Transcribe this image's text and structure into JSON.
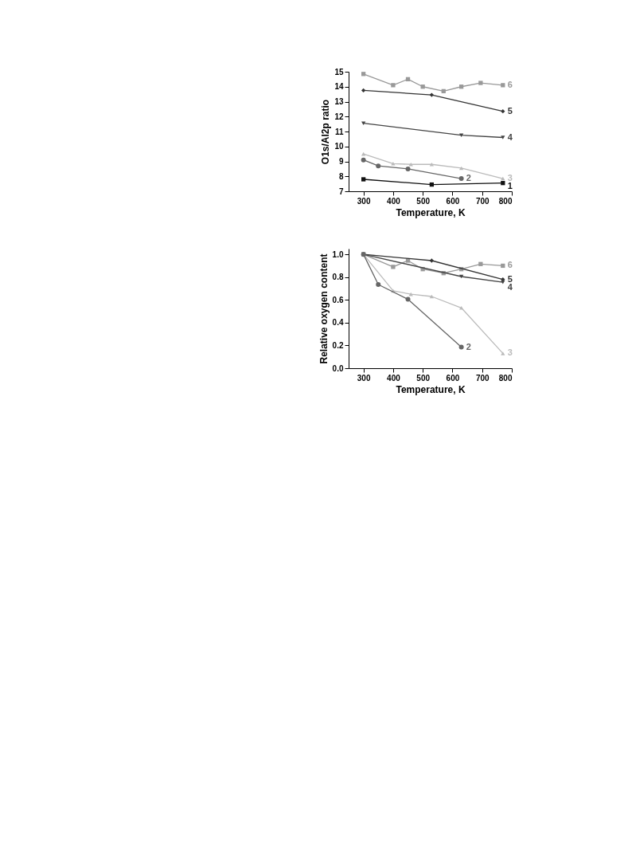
{
  "chart_data": [
    {
      "type": "line",
      "xlabel": "Temperature, K",
      "ylabel": "O1s/Al2p ratio",
      "xlim": [
        250,
        800
      ],
      "xticks": [
        300,
        400,
        500,
        600,
        700,
        800
      ],
      "ylim": [
        7,
        15
      ],
      "yticks": [
        7,
        8,
        9,
        10,
        11,
        12,
        13,
        14,
        15
      ],
      "grid": false,
      "legend": "right",
      "series": [
        {
          "name": "6",
          "color": "#999999",
          "marker": "square",
          "x": [
            300,
            400,
            450,
            500,
            570,
            630,
            695,
            770
          ],
          "values": [
            14.85,
            14.1,
            14.5,
            14.0,
            13.7,
            14.0,
            14.25,
            14.1
          ]
        },
        {
          "name": "5",
          "color": "#333333",
          "marker": "diamond",
          "x": [
            300,
            530,
            770
          ],
          "values": [
            13.75,
            13.45,
            12.35
          ]
        },
        {
          "name": "4",
          "color": "#444444",
          "marker": "triangle-down",
          "x": [
            300,
            630,
            770
          ],
          "values": [
            11.55,
            10.75,
            10.6
          ]
        },
        {
          "name": "3",
          "color": "#bbbbbb",
          "marker": "triangle",
          "x": [
            300,
            400,
            460,
            530,
            630,
            770
          ],
          "values": [
            9.5,
            8.85,
            8.8,
            8.8,
            8.55,
            7.85
          ]
        },
        {
          "name": "2",
          "color": "#666666",
          "marker": "circle",
          "x": [
            300,
            350,
            450,
            630
          ],
          "values": [
            9.1,
            8.7,
            8.5,
            7.85
          ]
        },
        {
          "name": "1",
          "color": "#111111",
          "marker": "square",
          "x": [
            300,
            530,
            770
          ],
          "values": [
            7.8,
            7.45,
            7.55
          ]
        }
      ]
    },
    {
      "type": "line",
      "xlabel": "Temperature, K",
      "ylabel": "Relative oxygen content",
      "xlim": [
        250,
        800
      ],
      "xticks": [
        300,
        400,
        500,
        600,
        700,
        800
      ],
      "ylim": [
        0,
        1.05
      ],
      "yticks": [
        {
          "value": 0,
          "label": "0.0"
        },
        0.2,
        0.4,
        0.6,
        0.8,
        {
          "value": 1,
          "label": "1.0"
        }
      ],
      "grid": false,
      "legend": "right",
      "series": [
        {
          "name": "6",
          "color": "#999999",
          "marker": "square",
          "x": [
            300,
            400,
            450,
            500,
            570,
            630,
            695,
            770
          ],
          "values": [
            1.0,
            0.89,
            0.945,
            0.87,
            0.835,
            0.87,
            0.915,
            0.9
          ]
        },
        {
          "name": "5",
          "color": "#333333",
          "marker": "diamond",
          "x": [
            300,
            530,
            770
          ],
          "values": [
            1.0,
            0.945,
            0.78
          ]
        },
        {
          "name": "4",
          "color": "#444444",
          "marker": "triangle-down",
          "x": [
            300,
            630,
            770
          ],
          "values": [
            1.0,
            0.805,
            0.755
          ]
        },
        {
          "name": "3",
          "color": "#bbbbbb",
          "marker": "triangle",
          "x": [
            300,
            400,
            460,
            530,
            630,
            770
          ],
          "values": [
            1.0,
            0.68,
            0.65,
            0.63,
            0.53,
            0.13
          ]
        },
        {
          "name": "2",
          "color": "#666666",
          "marker": "circle",
          "x": [
            300,
            350,
            450,
            630
          ],
          "values": [
            1.0,
            0.735,
            0.605,
            0.185
          ]
        }
      ]
    }
  ]
}
